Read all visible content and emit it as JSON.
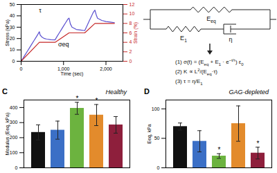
{
  "chart_data": [
    {
      "type": "line",
      "xlabel": "Time (sec)",
      "ylabel": "Stress (kPa)",
      "y2label": "Strain (%)",
      "xlim": [
        0,
        2400
      ],
      "xticks": [
        0,
        1000,
        2000
      ],
      "ylim": [
        0,
        50
      ],
      "yticks": [
        0,
        10,
        20,
        30,
        40,
        50
      ],
      "y2lim": [
        0,
        12
      ],
      "y2ticks": [
        0,
        2,
        4,
        6,
        8,
        10,
        12
      ],
      "series": [
        {
          "color": "#5a4fcf",
          "x": [
            0,
            50,
            100,
            150,
            200,
            250,
            300,
            350,
            400,
            430,
            450,
            500,
            550,
            600,
            700,
            800,
            850,
            900,
            950,
            1000,
            1050,
            1100,
            1130,
            1160,
            1200,
            1300,
            1400,
            1500,
            1550,
            1600,
            1650,
            1700,
            1740,
            1770,
            1800,
            1900,
            2000,
            2100,
            2200
          ],
          "values": [
            0,
            3,
            6,
            9,
            12,
            15,
            18,
            21,
            24,
            26,
            23,
            21,
            20,
            19.5,
            19,
            18.8,
            22,
            25,
            28,
            31,
            34,
            37,
            38,
            33,
            30,
            28,
            27.5,
            27,
            31,
            35,
            39,
            43,
            45,
            41,
            38,
            36,
            35,
            34.5,
            34
          ]
        },
        {
          "color": "#c62828",
          "axis": "y2",
          "x": [
            0,
            430,
            800,
            1130,
            1500,
            1740,
            2200
          ],
          "values": [
            0,
            4,
            4,
            6,
            6,
            8,
            8
          ]
        }
      ],
      "annotations": [
        {
          "text": "τ",
          "x": 450,
          "y": 45
        },
        {
          "text": "σeq",
          "x": 1000,
          "y": 15
        }
      ]
    },
    {
      "type": "bar",
      "panel": "C",
      "title": "Healthy",
      "ylabel": "Modulus (Eeq, kPa)",
      "categories": [
        null,
        null,
        null,
        null,
        null
      ],
      "values": [
        235,
        250,
        395,
        350,
        285
      ],
      "errors": [
        50,
        60,
        40,
        70,
        55
      ],
      "significance": [
        null,
        null,
        "*",
        "*",
        null
      ],
      "colors": [
        "#111111",
        "#3b6fc6",
        "#6cb33f",
        "#e38b2c",
        "#8e1f3c"
      ],
      "ylim": [
        0,
        450
      ],
      "yticks": [
        0,
        100,
        200,
        300,
        400
      ],
      "tick_labels": "y"
    },
    {
      "type": "bar",
      "panel": "D",
      "title": "GAG-depleted",
      "ylabel": "Eeq, kPa",
      "categories": [
        null,
        null,
        null,
        null,
        null
      ],
      "values": [
        70,
        45,
        20,
        75,
        25
      ],
      "errors": [
        6,
        18,
        4,
        30,
        10
      ],
      "significance": [
        null,
        null,
        "*",
        null,
        "*"
      ],
      "colors": [
        "#111111",
        "#3b6fc6",
        "#6cb33f",
        "#e38b2c",
        "#8e1f3c"
      ],
      "ylim": [
        0,
        115
      ],
      "yticks": [
        0,
        50,
        100
      ],
      "tick_labels": "y"
    }
  ],
  "diagram": {
    "springs": [
      {
        "label": [
          {
            "text": "E"
          },
          {
            "sub": "eq"
          }
        ]
      },
      {
        "label": [
          {
            "text": "E"
          },
          {
            "sub": "1"
          }
        ]
      }
    ],
    "dashpot": {
      "label": [
        {
          "text": "η"
        }
      ]
    },
    "equations": [
      [
        {
          "text": "(1)  σ(t) = (E"
        },
        {
          "sub": "eq"
        },
        {
          "text": " + E"
        },
        {
          "sub": "1"
        },
        {
          "text": " · e"
        },
        {
          "sup": "−t/τ"
        },
        {
          "text": ") ε"
        },
        {
          "sub": "0"
        }
      ],
      [
        {
          "text": "(2)  K ∝ L"
        },
        {
          "sup": "2"
        },
        {
          "text": "/(E"
        },
        {
          "sub": "eq"
        },
        {
          "text": "·τ)"
        }
      ],
      [
        {
          "text": "(3)  τ = η/E"
        },
        {
          "sub": "1"
        }
      ]
    ]
  }
}
